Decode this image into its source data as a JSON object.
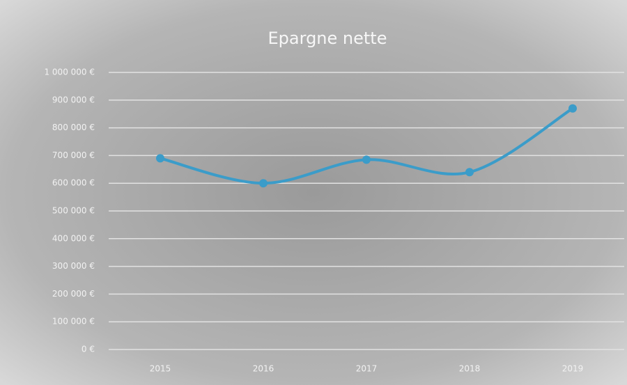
{
  "chart_data": {
    "type": "line",
    "title": "Epargne nette",
    "categories": [
      "2015",
      "2016",
      "2017",
      "2018",
      "2019"
    ],
    "series": [
      {
        "name": "Epargne nette",
        "color": "#3b9cc9",
        "values": [
          690000,
          600000,
          685000,
          640000,
          870000
        ]
      }
    ],
    "ylim": [
      0,
      1000000
    ],
    "yticks": [
      {
        "value": 0,
        "label": "0 €"
      },
      {
        "value": 100000,
        "label": "100 000 €"
      },
      {
        "value": 200000,
        "label": "200 000 €"
      },
      {
        "value": 300000,
        "label": "300 000 €"
      },
      {
        "value": 400000,
        "label": "400 000 €"
      },
      {
        "value": 500000,
        "label": "500 000 €"
      },
      {
        "value": 600000,
        "label": "600 000 €"
      },
      {
        "value": 700000,
        "label": "700 000 €"
      },
      {
        "value": 800000,
        "label": "800 000 €"
      },
      {
        "value": 900000,
        "label": "900 000 €"
      },
      {
        "value": 1000000,
        "label": "1 000 000 €"
      }
    ],
    "grid": true,
    "smooth": true
  }
}
